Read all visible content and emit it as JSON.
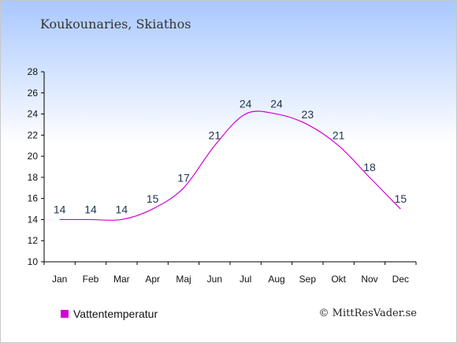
{
  "header": {
    "location": "Koukounaries, Skiathos"
  },
  "footer": {
    "credit": "© MittResVader.se"
  },
  "chart_data": {
    "type": "line",
    "categories": [
      "Jan",
      "Feb",
      "Mar",
      "Apr",
      "Maj",
      "Jun",
      "Jul",
      "Aug",
      "Sep",
      "Okt",
      "Nov",
      "Dec"
    ],
    "series": [
      {
        "name": "Vattentemperatur",
        "values": [
          14,
          14,
          14,
          15,
          17,
          21,
          24,
          24,
          23,
          21,
          18,
          15
        ],
        "color": "#d400d4"
      }
    ],
    "data_labels": [
      "14",
      "14",
      "14",
      "15",
      "17",
      "21",
      "24",
      "24",
      "23",
      "21",
      "18",
      "15"
    ],
    "y_ticks": [
      10,
      12,
      14,
      16,
      18,
      20,
      22,
      24,
      26,
      28
    ],
    "ylim": [
      10,
      28
    ],
    "grid": false,
    "legend": "bottom-left"
  }
}
